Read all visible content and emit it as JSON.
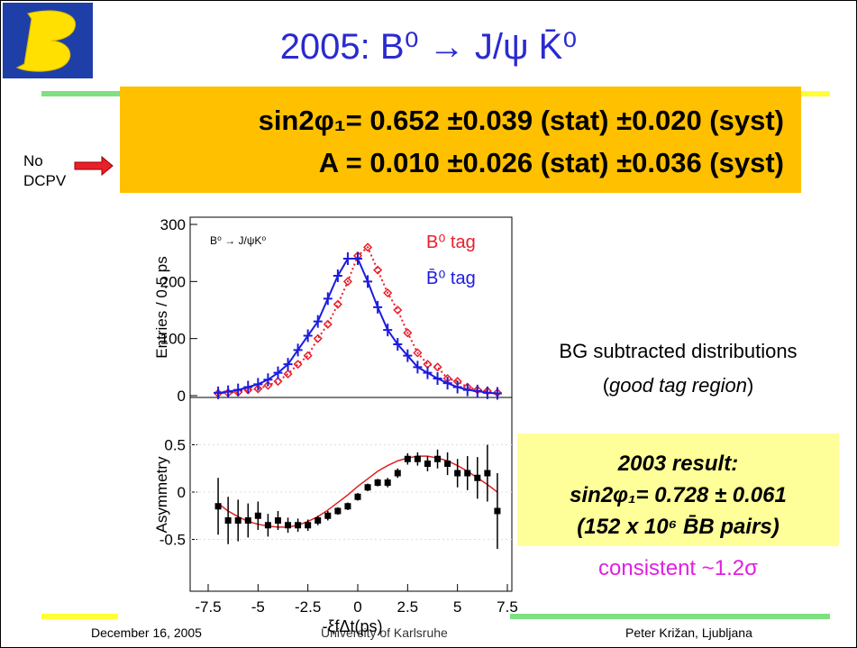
{
  "logo": {
    "text": "BELLE"
  },
  "header": {
    "title": "2005: B⁰ → J/ψ K̄⁰"
  },
  "result": {
    "line1": "sin2φ₁= 0.652 ±0.039 (stat) ±0.020 (syst)",
    "line2": "A = 0.010 ±0.026 (stat) ±0.036 (syst)"
  },
  "note": {
    "line1": "No",
    "line2": "DCPV"
  },
  "plot": {
    "type": "scatter",
    "annotation": "B⁰ → J/ψK⁰",
    "x": [
      -7,
      -6.5,
      -6,
      -5.5,
      -5,
      -4.5,
      -4,
      -3.5,
      -3,
      -2.5,
      -2,
      -1.5,
      -1,
      -0.5,
      0,
      0.5,
      1,
      1.5,
      2,
      2.5,
      3,
      3.5,
      4,
      4.5,
      5,
      5.5,
      6,
      6.5,
      7
    ],
    "xlim": [
      -7.5,
      7.5
    ],
    "xticks": [
      -7.5,
      -5,
      -2.5,
      0,
      2.5,
      5,
      7.5
    ],
    "xlabel": "-ξfΔt(ps)",
    "ylabel": "Entries / 0.5 ps",
    "ylim": [
      0,
      300
    ],
    "yticks": [
      0,
      100,
      200,
      300
    ],
    "series": [
      {
        "name": "B⁰ tag",
        "color": "#e8202a",
        "values": [
          4,
          5,
          6,
          10,
          12,
          18,
          25,
          38,
          55,
          70,
          100,
          125,
          160,
          200,
          245,
          260,
          220,
          180,
          150,
          110,
          75,
          55,
          50,
          30,
          25,
          15,
          10,
          8,
          5
        ]
      },
      {
        "name": "B̄⁰ tag",
        "color": "#1c1ce0",
        "values": [
          5,
          7,
          10,
          15,
          20,
          28,
          40,
          55,
          80,
          105,
          130,
          170,
          210,
          240,
          240,
          200,
          155,
          115,
          90,
          70,
          50,
          40,
          30,
          22,
          15,
          10,
          8,
          5,
          4
        ]
      }
    ],
    "asymmetry": {
      "ylabel": "Asymmetry",
      "ylim": [
        -1,
        1
      ],
      "yticks": [
        -0.5,
        0,
        0.5
      ],
      "values": [
        -0.15,
        -0.3,
        -0.3,
        -0.3,
        -0.25,
        -0.35,
        -0.3,
        -0.35,
        -0.35,
        -0.35,
        -0.3,
        -0.25,
        -0.2,
        -0.15,
        -0.05,
        0.05,
        0.1,
        0.1,
        0.2,
        0.35,
        0.35,
        0.3,
        0.35,
        0.3,
        0.2,
        0.2,
        0.15,
        0.2,
        -0.2
      ],
      "errors": [
        0.3,
        0.25,
        0.22,
        0.18,
        0.15,
        0.12,
        0.1,
        0.08,
        0.07,
        0.06,
        0.05,
        0.05,
        0.04,
        0.04,
        0.04,
        0.04,
        0.04,
        0.05,
        0.05,
        0.06,
        0.07,
        0.08,
        0.1,
        0.12,
        0.15,
        0.18,
        0.22,
        0.3,
        0.4
      ],
      "fit": [
        -0.12,
        -0.2,
        -0.26,
        -0.31,
        -0.34,
        -0.36,
        -0.37,
        -0.37,
        -0.35,
        -0.31,
        -0.26,
        -0.19,
        -0.11,
        -0.03,
        0.06,
        0.14,
        0.22,
        0.28,
        0.33,
        0.36,
        0.38,
        0.38,
        0.36,
        0.33,
        0.28,
        0.22,
        0.15,
        0.08,
        0.0
      ]
    }
  },
  "side": {
    "line1": "BG subtracted distributions",
    "open": "(",
    "italic": "good tag region",
    "close": ")"
  },
  "previous": {
    "line1": "2003 result:",
    "line2": "sin2φ₁= 0.728 ± 0.061",
    "line3": "(152 x 10⁶ B̄B pairs)",
    "verdict": "consistent ~1.2σ"
  },
  "footer": {
    "date": "December 16, 2005",
    "place": "University of Karlsruhe",
    "author": "Peter Križan, Ljubljana"
  }
}
